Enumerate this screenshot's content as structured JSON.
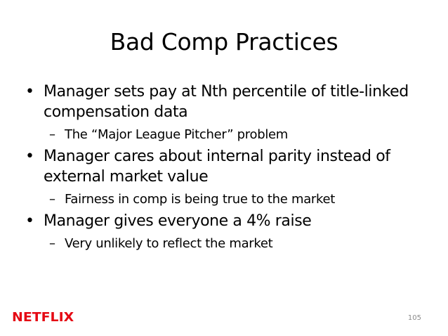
{
  "slide": {
    "title": "Bad Comp Practices",
    "bullets": [
      {
        "text": "Manager sets pay at Nth percentile of title-linked compensation data",
        "sub": "The “Major League Pitcher” problem"
      },
      {
        "text": "Manager cares about internal parity instead of external market value",
        "sub": "Fairness in comp is being true to the market"
      },
      {
        "text": "Manager gives everyone a 4% raise",
        "sub": "Very unlikely to reflect the market"
      }
    ],
    "bullet_symbol": "•",
    "sub_symbol": "–",
    "logo_text": "NETFLIX",
    "brand_color": "#e50914",
    "page_number": "105"
  }
}
